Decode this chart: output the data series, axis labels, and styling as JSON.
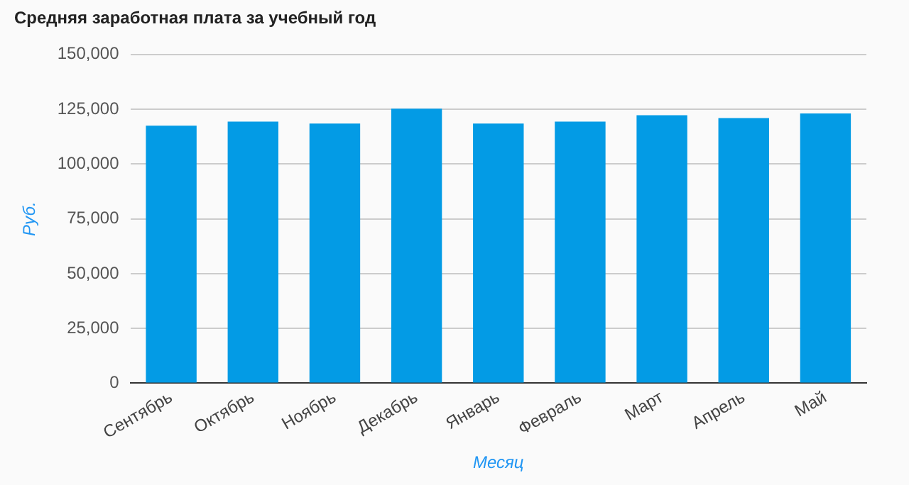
{
  "chart_data": {
    "type": "bar",
    "title": "Средняя заработная плата за учебный год",
    "xlabel": "Месяц",
    "ylabel": "Руб.",
    "categories": [
      "Сентябрь",
      "Октябрь",
      "Ноябрь",
      "Декабрь",
      "Январь",
      "Февраль",
      "Март",
      "Апрель",
      "Май"
    ],
    "values": [
      117500,
      119400,
      118500,
      125300,
      118500,
      119400,
      122300,
      121000,
      123100
    ],
    "color": "#039be5",
    "ylim": [
      0,
      150000
    ],
    "yticks": [
      {
        "value": 0,
        "label": "0"
      },
      {
        "value": 25000,
        "label": "25,000"
      },
      {
        "value": 50000,
        "label": "50,000"
      },
      {
        "value": 75000,
        "label": "75,000"
      },
      {
        "value": 100000,
        "label": "100,000"
      },
      {
        "value": 125000,
        "label": "125,000"
      },
      {
        "value": 150000,
        "label": "150,000"
      }
    ],
    "grid": "y"
  }
}
